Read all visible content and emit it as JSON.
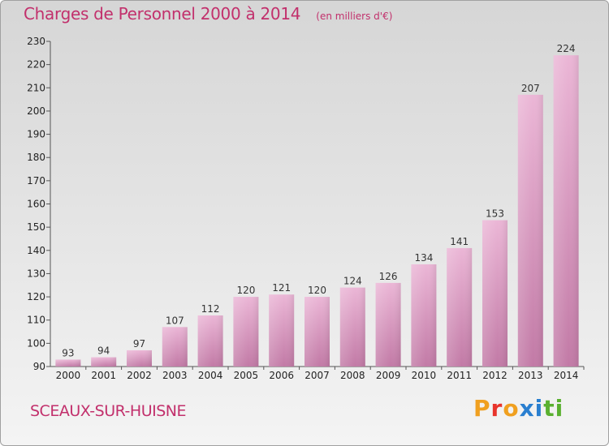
{
  "header": {
    "title": "Charges de Personnel 2000 à 2014",
    "unit": "(en milliers d'€)"
  },
  "footer": {
    "commune": "SCEAUX-SUR-HUISNE",
    "brand": "Proxiti",
    "brand_colors": [
      "#f0a020",
      "#e8342c",
      "#f0a020",
      "#2a7fd0",
      "#2a7fd0",
      "#5ab030",
      "#5ab030"
    ]
  },
  "colors": {
    "accent": "#c2306c",
    "bar_light": "#eab4d4",
    "bar_dark": "#c47ca8"
  },
  "chart_data": {
    "type": "bar",
    "categories": [
      "2000",
      "2001",
      "2002",
      "2003",
      "2004",
      "2005",
      "2006",
      "2007",
      "2008",
      "2009",
      "2010",
      "2011",
      "2012",
      "2013",
      "2014"
    ],
    "values": [
      93,
      94,
      97,
      107,
      112,
      120,
      121,
      120,
      124,
      126,
      134,
      141,
      153,
      207,
      224
    ],
    "ylim": [
      90,
      230
    ],
    "yticks": [
      90,
      100,
      110,
      120,
      130,
      140,
      150,
      160,
      170,
      180,
      190,
      200,
      210,
      220,
      230
    ],
    "grid": false,
    "data_labels": true
  }
}
